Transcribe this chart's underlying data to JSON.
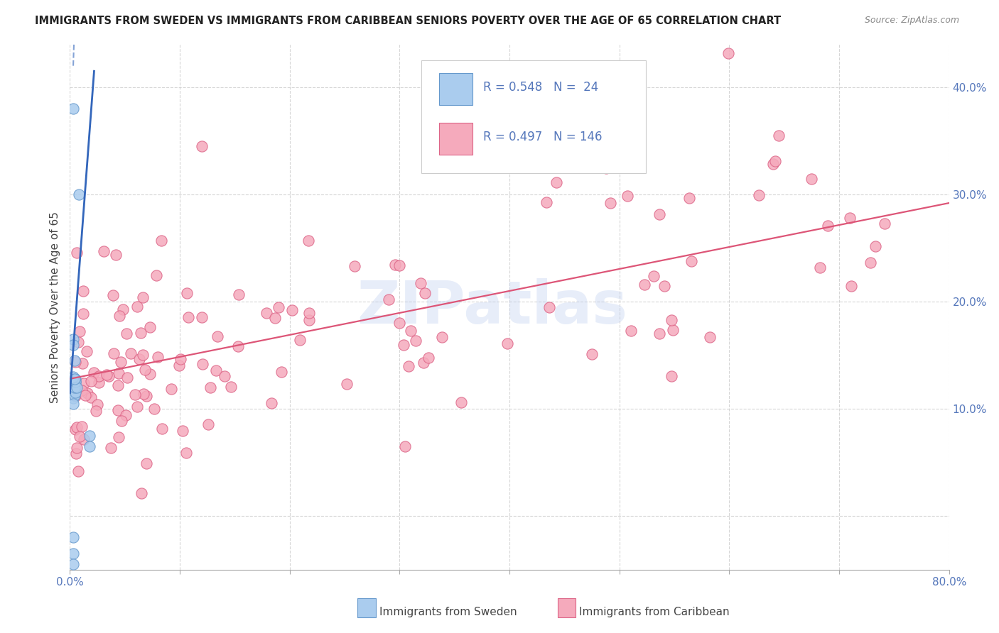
{
  "title": "IMMIGRANTS FROM SWEDEN VS IMMIGRANTS FROM CARIBBEAN SENIORS POVERTY OVER THE AGE OF 65 CORRELATION CHART",
  "source": "Source: ZipAtlas.com",
  "ylabel": "Seniors Poverty Over the Age of 65",
  "xlim": [
    0,
    0.8
  ],
  "ylim": [
    -0.05,
    0.44
  ],
  "xticks": [
    0.0,
    0.1,
    0.2,
    0.3,
    0.4,
    0.5,
    0.6,
    0.7,
    0.8
  ],
  "yticks": [
    0.0,
    0.1,
    0.2,
    0.3,
    0.4
  ],
  "sweden_color": "#aaccee",
  "caribbean_color": "#f5aabc",
  "sweden_edge": "#6699cc",
  "caribbean_edge": "#dd6688",
  "trend_sweden_color": "#3366bb",
  "trend_caribbean_color": "#dd5577",
  "tick_color": "#5577bb",
  "watermark": "ZIPatlas",
  "legend_label_sweden": "Immigrants from Sweden",
  "legend_label_caribbean": "Immigrants from Caribbean",
  "R_sweden": "0.548",
  "N_sweden": "24",
  "R_caribbean": "0.497",
  "N_caribbean": "146"
}
